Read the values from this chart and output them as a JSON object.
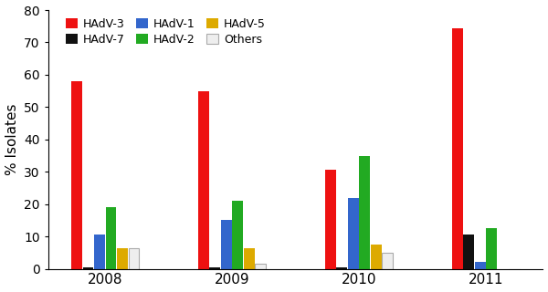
{
  "years": [
    "2008",
    "2009",
    "2010",
    "2011"
  ],
  "series": {
    "HAdV-3": [
      58,
      55,
      30.5,
      74.5
    ],
    "HAdV-7": [
      0.5,
      0.5,
      0.5,
      10.5
    ],
    "HAdV-1": [
      10.5,
      15,
      22,
      2
    ],
    "HAdV-2": [
      19,
      21,
      35,
      12.5
    ],
    "HAdV-5": [
      6.5,
      6.5,
      7.5,
      0
    ],
    "Others": [
      6.5,
      1.5,
      5,
      0
    ]
  },
  "colors": {
    "HAdV-3": "#EE1111",
    "HAdV-7": "#111111",
    "HAdV-1": "#3366CC",
    "HAdV-2": "#22AA22",
    "HAdV-5": "#DDAA00",
    "Others": "#EEEEEE"
  },
  "bar_order": [
    "HAdV-3",
    "HAdV-7",
    "HAdV-1",
    "HAdV-2",
    "HAdV-5",
    "Others"
  ],
  "legend_order": [
    "HAdV-3",
    "HAdV-7",
    "HAdV-1",
    "HAdV-2",
    "HAdV-5",
    "Others"
  ],
  "ylabel": "% Isolates",
  "ylim": [
    0,
    80
  ],
  "yticks": [
    0,
    10,
    20,
    30,
    40,
    50,
    60,
    70,
    80
  ],
  "bar_width": 0.09,
  "group_positions": [
    0,
    1,
    2,
    3
  ]
}
